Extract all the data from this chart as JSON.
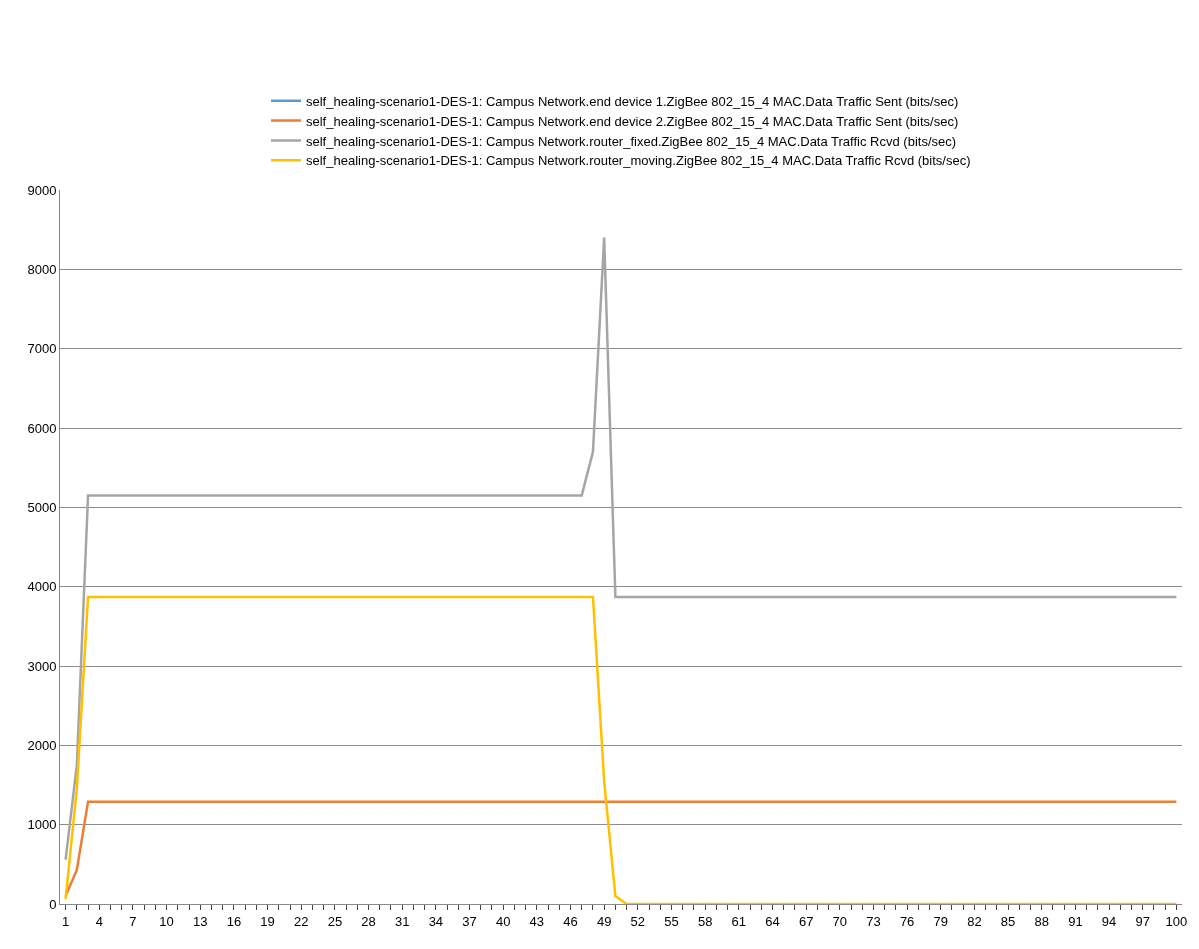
{
  "chart_data": {
    "type": "line",
    "categories": [
      "1",
      null,
      null,
      "4",
      null,
      null,
      "7",
      null,
      null,
      "10",
      null,
      null,
      "13",
      null,
      null,
      "16",
      null,
      null,
      "19",
      null,
      null,
      "22",
      null,
      null,
      "25",
      null,
      null,
      "28",
      null,
      null,
      "31",
      null,
      null,
      "34",
      null,
      null,
      "37",
      null,
      null,
      "40",
      null,
      null,
      "43",
      null,
      null,
      "46",
      null,
      null,
      "49",
      null,
      null,
      "52",
      null,
      null,
      "55",
      null,
      null,
      "58",
      null,
      null,
      "61",
      null,
      null,
      "64",
      null,
      null,
      "67",
      null,
      null,
      "70",
      null,
      null,
      "73",
      null,
      null,
      "76",
      null,
      null,
      "79",
      null,
      null,
      "82",
      null,
      null,
      "85",
      null,
      null,
      "88",
      null,
      null,
      "91",
      null,
      null,
      "94",
      null,
      null,
      "97",
      null,
      null,
      "100"
    ],
    "series": [
      {
        "name": "self_healing-scenario1-DES-1: Campus Network.end device 1.ZigBee 802_15_4 MAC.Data Traffic Sent (bits/sec)",
        "color": "#5b9bd5",
        "values": [
          null,
          null,
          null,
          null,
          null,
          null,
          null,
          null,
          null,
          null,
          null,
          null,
          null,
          null,
          null,
          null,
          null,
          null,
          null,
          null,
          null,
          null,
          null,
          null,
          null,
          null,
          null,
          null,
          null,
          null,
          null,
          null,
          null,
          null,
          null,
          null,
          null,
          null,
          null,
          null,
          null,
          null,
          null,
          null,
          null,
          null,
          null,
          null,
          null,
          null,
          null,
          null,
          null,
          null,
          null,
          null,
          null,
          null,
          null,
          null,
          null,
          null,
          null,
          null,
          null,
          null,
          null,
          null,
          null,
          null,
          null,
          null,
          null,
          null,
          null,
          null,
          null,
          null,
          null,
          null,
          null,
          null,
          null,
          null,
          null,
          null,
          null,
          null,
          null,
          null,
          null,
          null,
          null,
          null,
          null,
          null,
          null,
          null,
          null,
          null
        ]
      },
      {
        "name": "self_healing-scenario1-DES-1: Campus Network.end device 2.ZigBee 802_15_4 MAC.Data Traffic Sent (bits/sec)",
        "color": "#ed7d31",
        "values": [
          100,
          430,
          1290,
          1290,
          1290,
          1290,
          1290,
          1290,
          1290,
          1290,
          1290,
          1290,
          1290,
          1290,
          1290,
          1290,
          1290,
          1290,
          1290,
          1290,
          1290,
          1290,
          1290,
          1290,
          1290,
          1290,
          1290,
          1290,
          1290,
          1290,
          1290,
          1290,
          1290,
          1290,
          1290,
          1290,
          1290,
          1290,
          1290,
          1290,
          1290,
          1290,
          1290,
          1290,
          1290,
          1290,
          1290,
          1290,
          1290,
          1290,
          1290,
          1290,
          1290,
          1290,
          1290,
          1290,
          1290,
          1290,
          1290,
          1290,
          1290,
          1290,
          1290,
          1290,
          1290,
          1290,
          1290,
          1290,
          1290,
          1290,
          1290,
          1290,
          1290,
          1290,
          1290,
          1290,
          1290,
          1290,
          1290,
          1290,
          1290,
          1290,
          1290,
          1290,
          1290,
          1290,
          1290,
          1290,
          1290,
          1290,
          1290,
          1290,
          1290,
          1290,
          1290,
          1290,
          1290,
          1290,
          1290,
          1290
        ]
      },
      {
        "name": "self_healing-scenario1-DES-1: Campus Network.router_fixed.ZigBee 802_15_4 MAC.Data Traffic Rcvd (bits/sec)",
        "color": "#a5a5a5",
        "values": [
          560,
          1750,
          5150,
          5150,
          5150,
          5150,
          5150,
          5150,
          5150,
          5150,
          5150,
          5150,
          5150,
          5150,
          5150,
          5150,
          5150,
          5150,
          5150,
          5150,
          5150,
          5150,
          5150,
          5150,
          5150,
          5150,
          5150,
          5150,
          5150,
          5150,
          5150,
          5150,
          5150,
          5150,
          5150,
          5150,
          5150,
          5150,
          5150,
          5150,
          5150,
          5150,
          5150,
          5150,
          5150,
          5150,
          5150,
          5700,
          8400,
          3870,
          3870,
          3870,
          3870,
          3870,
          3870,
          3870,
          3870,
          3870,
          3870,
          3870,
          3870,
          3870,
          3870,
          3870,
          3870,
          3870,
          3870,
          3870,
          3870,
          3870,
          3870,
          3870,
          3870,
          3870,
          3870,
          3870,
          3870,
          3870,
          3870,
          3870,
          3870,
          3870,
          3870,
          3870,
          3870,
          3870,
          3870,
          3870,
          3870,
          3870,
          3870,
          3870,
          3870,
          3870,
          3870,
          3870,
          3870,
          3870,
          3870,
          3870
        ]
      },
      {
        "name": "self_healing-scenario1-DES-1: Campus Network.router_moving.ZigBee 802_15_4 MAC.Data Traffic Rcvd (bits/sec)",
        "color": "#ffc000",
        "values": [
          60,
          1450,
          3870,
          3870,
          3870,
          3870,
          3870,
          3870,
          3870,
          3870,
          3870,
          3870,
          3870,
          3870,
          3870,
          3870,
          3870,
          3870,
          3870,
          3870,
          3870,
          3870,
          3870,
          3870,
          3870,
          3870,
          3870,
          3870,
          3870,
          3870,
          3870,
          3870,
          3870,
          3870,
          3870,
          3870,
          3870,
          3870,
          3870,
          3870,
          3870,
          3870,
          3870,
          3870,
          3870,
          3870,
          3870,
          3870,
          1550,
          100,
          0,
          0,
          0,
          0,
          0,
          0,
          0,
          0,
          0,
          0,
          0,
          0,
          0,
          0,
          0,
          0,
          0,
          0,
          0,
          0,
          0,
          0,
          0,
          0,
          0,
          0,
          0,
          0,
          0,
          0,
          0,
          0,
          0,
          0,
          0,
          0,
          0,
          0,
          0,
          0,
          0,
          0,
          0,
          0,
          0,
          0,
          0,
          0,
          0,
          0
        ]
      }
    ],
    "ylim": [
      0,
      9000
    ],
    "yticks": [
      0,
      1000,
      2000,
      3000,
      4000,
      5000,
      6000,
      7000,
      8000,
      9000
    ],
    "grid": "y",
    "legend": "top",
    "marker": "none",
    "line_style": "solid"
  }
}
